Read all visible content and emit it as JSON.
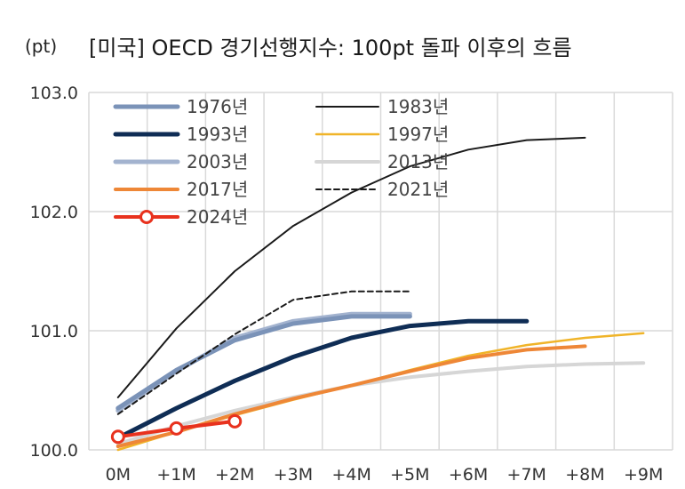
{
  "chart_data": {
    "type": "line",
    "title": "[미국] OECD 경기선행지수: 100pt 돌파 이후의 흐름",
    "unit_label": "(pt)",
    "ylim": [
      100.0,
      103.0
    ],
    "y_ticks": [
      "100.0",
      "101.0",
      "102.0",
      "103.0"
    ],
    "x_ticks": [
      "0M",
      "+1M",
      "+2M",
      "+3M",
      "+4M",
      "+5M",
      "+6M",
      "+7M",
      "+8M",
      "+9M"
    ],
    "grid": true,
    "legend_position": "top-left",
    "series": [
      {
        "name": "1976년",
        "color": "#7b93b8",
        "width": 5,
        "dash": "",
        "marker": false,
        "values": [
          100.35,
          100.67,
          100.92,
          101.06,
          101.12,
          101.12
        ]
      },
      {
        "name": "1983년",
        "color": "#1a1a1a",
        "width": 2,
        "dash": "",
        "marker": false,
        "values": [
          100.44,
          101.02,
          101.5,
          101.88,
          102.16,
          102.38,
          102.52,
          102.6,
          102.62
        ]
      },
      {
        "name": "1993년",
        "color": "#0f2d55",
        "width": 5,
        "dash": "",
        "marker": false,
        "values": [
          100.1,
          100.35,
          100.58,
          100.78,
          100.94,
          101.04,
          101.08,
          101.08
        ]
      },
      {
        "name": "1997년",
        "color": "#f0b429",
        "width": 2.5,
        "dash": "",
        "marker": false,
        "values": [
          100.0,
          100.15,
          100.29,
          100.42,
          100.54,
          100.67,
          100.79,
          100.88,
          100.94,
          100.98
        ]
      },
      {
        "name": "2003년",
        "color": "#a3b3cf",
        "width": 5,
        "dash": "",
        "marker": false,
        "values": [
          100.33,
          100.66,
          100.94,
          101.08,
          101.14,
          101.14
        ]
      },
      {
        "name": "2013년",
        "color": "#d6d6d6",
        "width": 4,
        "dash": "",
        "marker": false,
        "values": [
          100.05,
          100.2,
          100.33,
          100.44,
          100.54,
          100.61,
          100.66,
          100.7,
          100.72,
          100.73
        ]
      },
      {
        "name": "2017년",
        "color": "#ee8737",
        "width": 4,
        "dash": "",
        "marker": false,
        "values": [
          100.03,
          100.15,
          100.3,
          100.43,
          100.54,
          100.66,
          100.77,
          100.84,
          100.87
        ]
      },
      {
        "name": "2021년",
        "color": "#1a1a1a",
        "width": 2,
        "dash": "6,4",
        "marker": false,
        "values": [
          100.3,
          100.64,
          100.97,
          101.26,
          101.33,
          101.33
        ]
      },
      {
        "name": "2024년",
        "color": "#e8321e",
        "width": 4,
        "dash": "",
        "marker": true,
        "values": [
          100.11,
          100.18,
          100.24
        ]
      }
    ],
    "legend_order": [
      "1976년",
      "1983년",
      "1993년",
      "1997년",
      "2003년",
      "2013년",
      "2017년",
      "2021년",
      "2024년"
    ]
  }
}
